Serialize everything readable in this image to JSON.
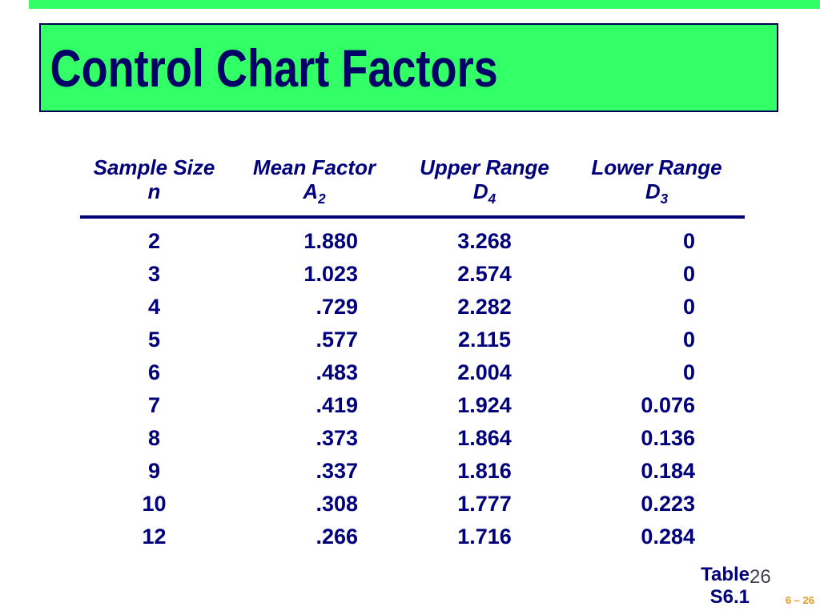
{
  "title": "Control Chart Factors",
  "colors": {
    "banner_green": "#33ff66",
    "banner_border_navy": "#000050",
    "text_navy": "#00007a",
    "title_navy": "#000066",
    "page_ref_orange": "#e09a1f",
    "page_number_gray": "#3c3c50"
  },
  "footer": {
    "table_caption": "Table S6.1",
    "page_number": "26",
    "slide_ref": "6 – 26"
  },
  "chart_data": {
    "type": "table",
    "title": "Control Chart Factors",
    "columns": [
      {
        "title": "Sample Size",
        "symbol_base": "n",
        "symbol_sub": ""
      },
      {
        "title": "Mean Factor",
        "symbol_base": "A",
        "symbol_sub": "2"
      },
      {
        "title": "Upper Range",
        "symbol_base": "D",
        "symbol_sub": "4"
      },
      {
        "title": "Lower Range",
        "symbol_base": "D",
        "symbol_sub": "3"
      }
    ],
    "rows": [
      [
        "2",
        "1.880",
        "3.268",
        "0"
      ],
      [
        "3",
        "1.023",
        "2.574",
        "0"
      ],
      [
        "4",
        ".729",
        "2.282",
        "0"
      ],
      [
        "5",
        ".577",
        "2.115",
        "0"
      ],
      [
        "6",
        ".483",
        "2.004",
        "0"
      ],
      [
        "7",
        ".419",
        "1.924",
        "0.076"
      ],
      [
        "8",
        ".373",
        "1.864",
        "0.136"
      ],
      [
        "9",
        ".337",
        "1.816",
        "0.184"
      ],
      [
        "10",
        ".308",
        "1.777",
        "0.223"
      ],
      [
        "12",
        ".266",
        "1.716",
        "0.284"
      ]
    ]
  }
}
